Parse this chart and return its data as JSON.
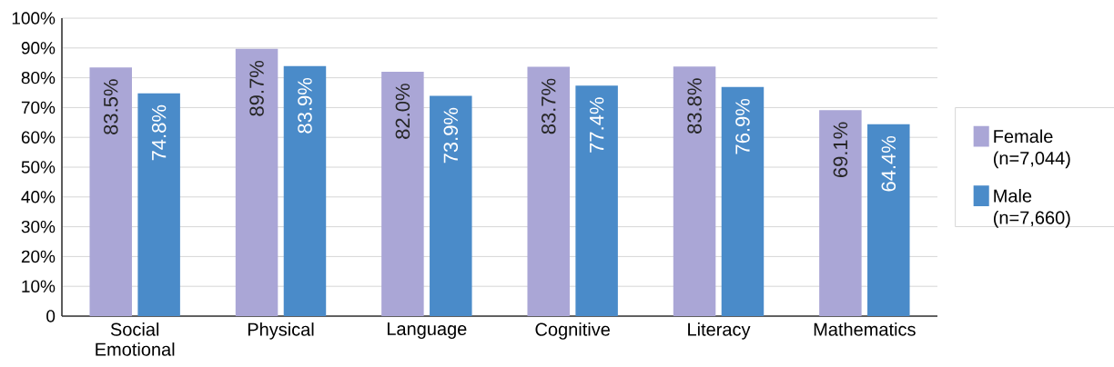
{
  "chart_data": {
    "type": "bar",
    "categories": [
      "Social Emotional",
      "Physical",
      "Language",
      "Cognitive",
      "Literacy",
      "Mathematics"
    ],
    "series": [
      {
        "name": "Female (n=7,044)",
        "color": "#aaa6d6",
        "values": [
          83.5,
          89.7,
          82.0,
          83.7,
          83.8,
          69.1
        ],
        "value_labels": [
          "83.5%",
          "89.7%",
          "82.0%",
          "83.7%",
          "83.8%",
          "69.1%"
        ]
      },
      {
        "name": "Male (n=7,660)",
        "color": "#4a8bc9",
        "values": [
          74.8,
          83.9,
          73.9,
          77.4,
          76.9,
          64.4
        ],
        "value_labels": [
          "74.8%",
          "83.9%",
          "73.9%",
          "77.4%",
          "76.9%",
          "64.4%"
        ]
      }
    ],
    "ylim": [
      0,
      100
    ],
    "yticks": [
      0,
      {
        "value": 10,
        "label": "10%"
      },
      {
        "value": 20,
        "label": "20%"
      },
      {
        "value": 30,
        "label": "30%"
      },
      {
        "value": 40,
        "label": "40%"
      },
      {
        "value": 50,
        "label": "50%"
      },
      {
        "value": 60,
        "label": "60%"
      },
      {
        "value": 70,
        "label": "70%"
      },
      {
        "value": 80,
        "label": "80%"
      },
      {
        "value": 90,
        "label": "90%"
      },
      {
        "value": 100,
        "label": "100%"
      }
    ],
    "grid": "y",
    "legend": "right"
  }
}
